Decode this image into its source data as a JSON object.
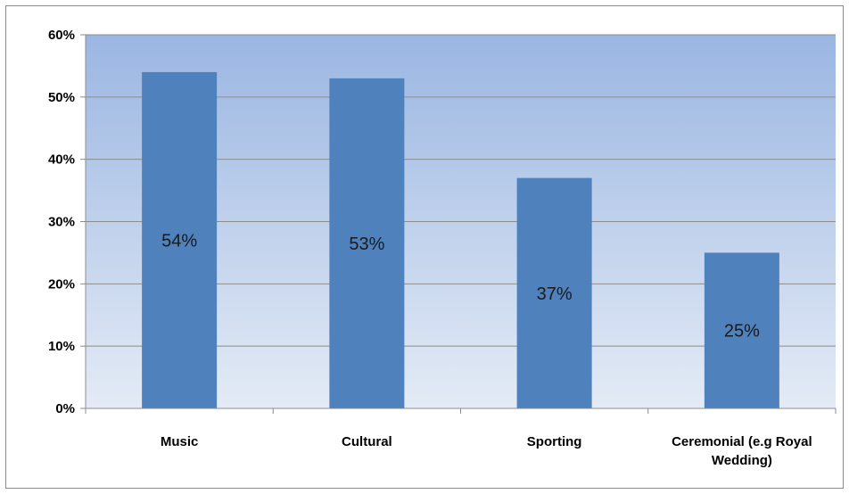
{
  "chart_data": {
    "type": "bar",
    "categories": [
      [
        "Music"
      ],
      [
        "Cultural"
      ],
      [
        "Sporting"
      ],
      [
        "Ceremonial (e.g Royal",
        "Wedding)"
      ]
    ],
    "values": [
      54,
      53,
      37,
      25
    ],
    "data_labels": [
      "54%",
      "53%",
      "37%",
      "25%"
    ],
    "y_ticks": [
      "0%",
      "10%",
      "20%",
      "30%",
      "40%",
      "50%",
      "60%"
    ],
    "ylim": [
      0,
      60
    ],
    "grid": true,
    "legend": "none",
    "bar_color": "#4f81bd",
    "plot_gradient_top": "#9ab6e2",
    "plot_gradient_bottom": "#e4ebf6"
  }
}
